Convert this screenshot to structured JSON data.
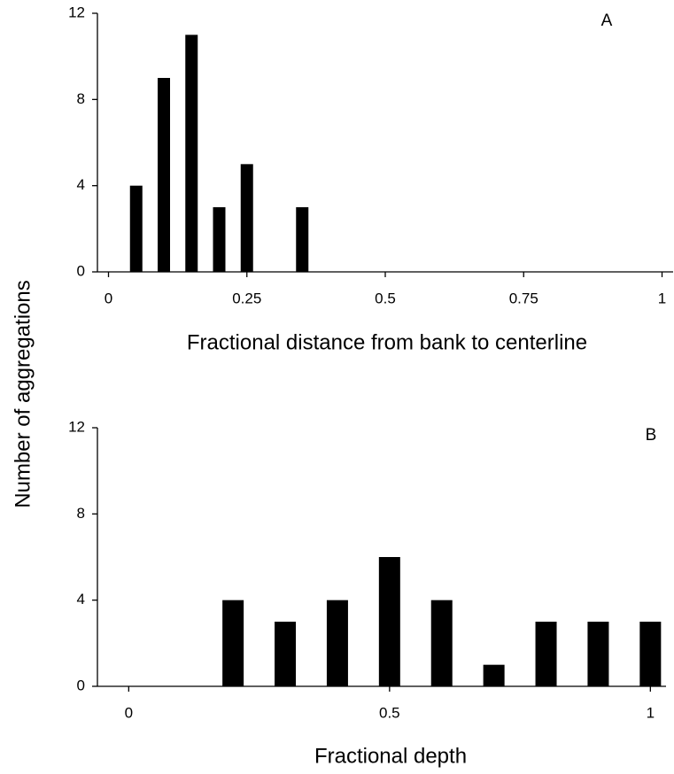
{
  "ylabel": "Number of aggregations",
  "chart_data": [
    {
      "type": "bar",
      "annotation": "A",
      "xlabel": "Fractional distance from bank to centerline",
      "x": [
        0.05,
        0.1,
        0.15,
        0.2,
        0.25,
        0.35
      ],
      "values": [
        4,
        9,
        11,
        3,
        5,
        3
      ],
      "color": "#000000",
      "xlim": [
        -0.02,
        1.02
      ],
      "xticks": [
        0,
        0.25,
        0.5,
        0.75,
        1
      ],
      "ylim": [
        0,
        12
      ],
      "yticks": [
        0,
        4,
        8,
        12
      ],
      "grid": false
    },
    {
      "type": "bar",
      "annotation": "B",
      "xlabel": "Fractional depth",
      "x": [
        0.2,
        0.3,
        0.4,
        0.5,
        0.6,
        0.7,
        0.8,
        0.9,
        1.0
      ],
      "values": [
        4,
        3,
        4,
        6,
        4,
        1,
        3,
        3,
        3
      ],
      "color": "#000000",
      "xlim": [
        -0.06,
        1.03
      ],
      "xticks": [
        0,
        0.5,
        1
      ],
      "ylim": [
        0,
        12
      ],
      "yticks": [
        0,
        4,
        8,
        12
      ],
      "grid": false
    }
  ]
}
